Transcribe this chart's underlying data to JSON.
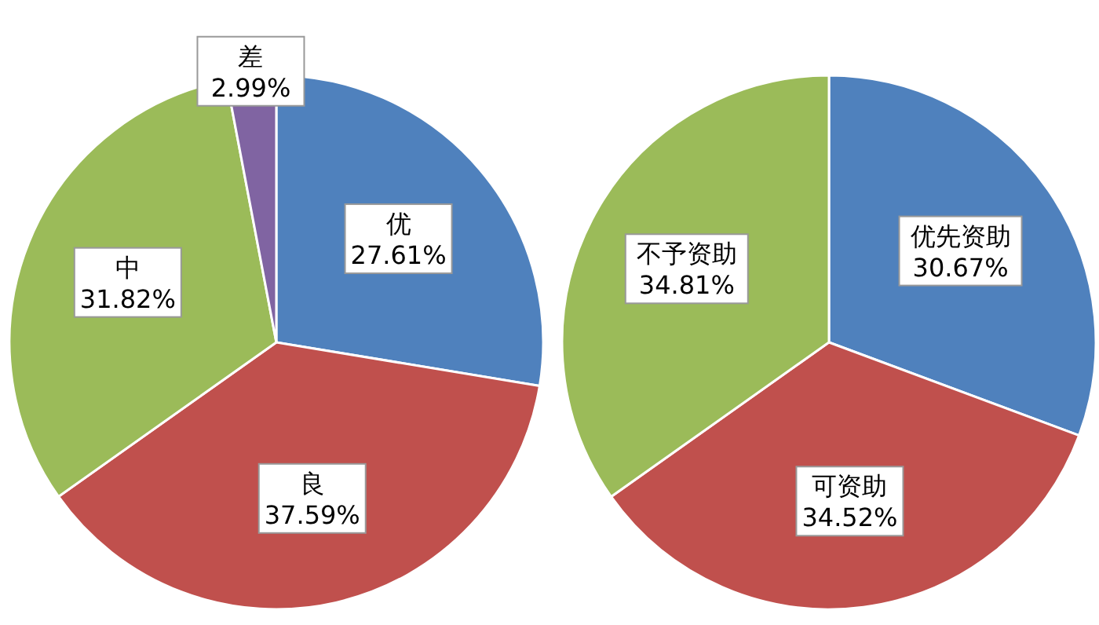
{
  "chart_data": [
    {
      "type": "pie",
      "categories": [
        "优",
        "良",
        "中",
        "差"
      ],
      "values": [
        27.61,
        37.59,
        31.82,
        2.99
      ],
      "value_labels": [
        "27.61%",
        "37.59%",
        "31.82%",
        "2.99%"
      ],
      "colors": [
        "#4f81bd",
        "#c0504d",
        "#9bbb59",
        "#8064a2"
      ]
    },
    {
      "type": "pie",
      "categories": [
        "优先资助",
        "可资助",
        "不予资助"
      ],
      "values": [
        30.67,
        34.52,
        34.81
      ],
      "value_labels": [
        "30.67%",
        "34.52%",
        "34.81%"
      ],
      "colors": [
        "#4f81bd",
        "#c0504d",
        "#9bbb59"
      ]
    }
  ]
}
